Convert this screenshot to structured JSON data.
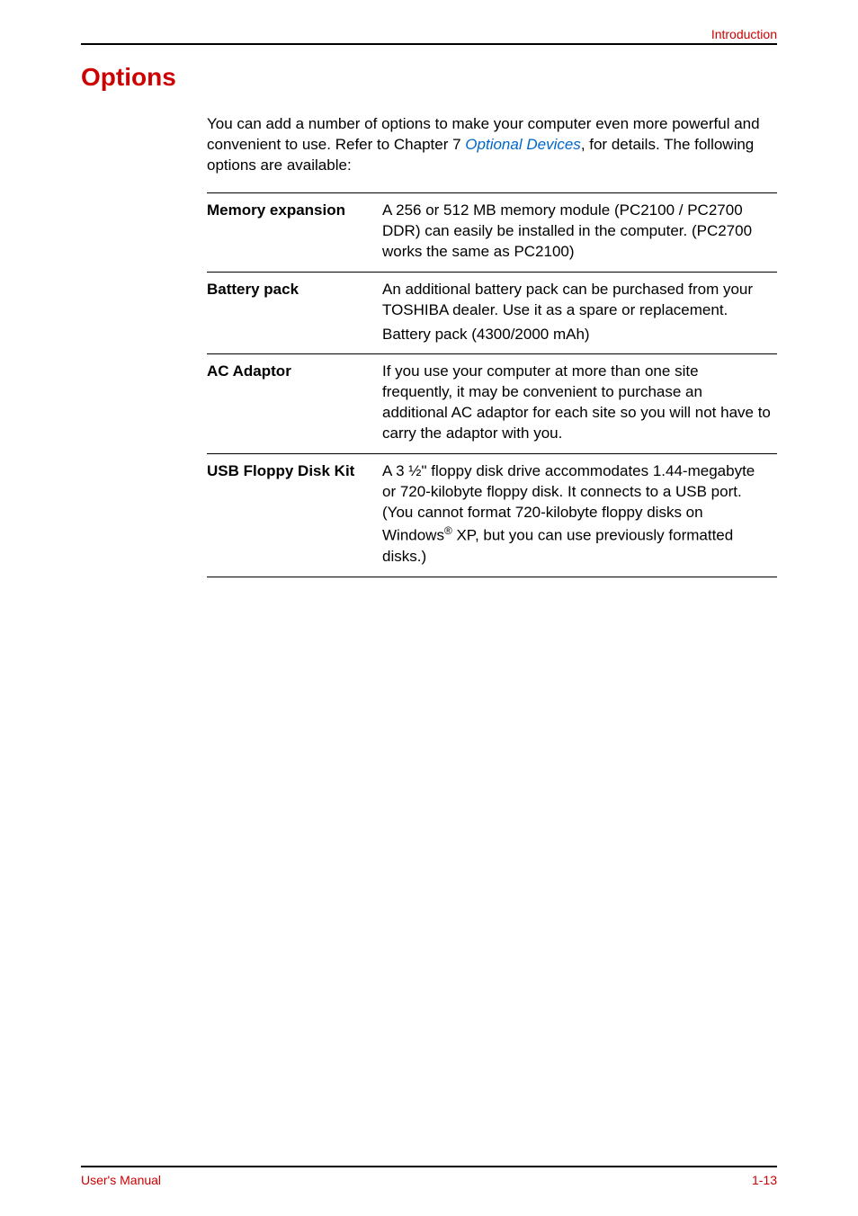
{
  "colors": {
    "accent": "#cc0000",
    "link": "#0066cc",
    "text": "#000000",
    "rule": "#000000",
    "background": "#ffffff"
  },
  "typography": {
    "body_font": "Arial",
    "body_size_pt": 13,
    "heading_size_pt": 21,
    "heading_weight": "bold"
  },
  "header": {
    "section_label": "Introduction"
  },
  "heading": "Options",
  "intro": {
    "part1": "You can add a number of options to make your computer even more powerful and convenient to use. Refer to Chapter 7 ",
    "link": "Optional Devices",
    "part2": ", for details. The following options are available:"
  },
  "options": [
    {
      "label": "Memory expansion",
      "desc": "A 256 or 512 MB memory module (PC2100 / PC2700 DDR) can easily be installed in the computer. (PC2700 works the same as PC2100)"
    },
    {
      "label": "Battery pack",
      "desc": "An additional battery pack can be purchased from your TOSHIBA dealer. Use it as a spare or replacement.",
      "desc2": "Battery pack (4300/2000 mAh)"
    },
    {
      "label": "AC Adaptor",
      "desc": "If you use your computer at more than one site frequently, it may be convenient to purchase an additional AC adaptor for each site so you will not have to carry the adaptor with you."
    },
    {
      "label": "USB Floppy Disk Kit",
      "desc_pre": "A 3 ½\" floppy disk drive accommodates 1.44-megabyte or 720-kilobyte floppy disk. It connects to a USB port. (You cannot format 720-kilobyte floppy disks on Windows",
      "desc_sup": "®",
      "desc_post": " XP, but you can use previously formatted disks.)"
    }
  ],
  "footer": {
    "left": "User's Manual",
    "right": "1-13"
  }
}
